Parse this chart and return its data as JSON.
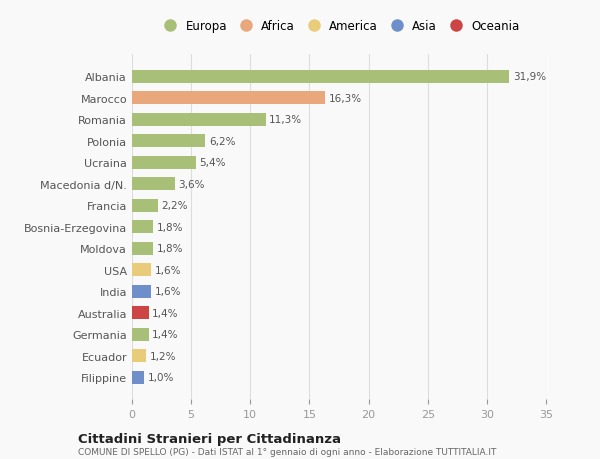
{
  "countries": [
    "Albania",
    "Marocco",
    "Romania",
    "Polonia",
    "Ucraina",
    "Macedonia d/N.",
    "Francia",
    "Bosnia-Erzegovina",
    "Moldova",
    "USA",
    "India",
    "Australia",
    "Germania",
    "Ecuador",
    "Filippine"
  ],
  "values": [
    31.9,
    16.3,
    11.3,
    6.2,
    5.4,
    3.6,
    2.2,
    1.8,
    1.8,
    1.6,
    1.6,
    1.4,
    1.4,
    1.2,
    1.0
  ],
  "labels": [
    "31,9%",
    "16,3%",
    "11,3%",
    "6,2%",
    "5,4%",
    "3,6%",
    "2,2%",
    "1,8%",
    "1,8%",
    "1,6%",
    "1,6%",
    "1,4%",
    "1,4%",
    "1,2%",
    "1,0%"
  ],
  "colors": [
    "#a8bf78",
    "#e8a87c",
    "#a8bf78",
    "#a8bf78",
    "#a8bf78",
    "#a8bf78",
    "#a8bf78",
    "#a8bf78",
    "#a8bf78",
    "#e8cc7a",
    "#6e8fc9",
    "#cc4444",
    "#a8bf78",
    "#e8cc7a",
    "#6e8fc9"
  ],
  "legend_labels": [
    "Europa",
    "Africa",
    "America",
    "Asia",
    "Oceania"
  ],
  "legend_colors": [
    "#a8bf78",
    "#e8a87c",
    "#e8cc7a",
    "#6e8fc9",
    "#cc4444"
  ],
  "title": "Cittadini Stranieri per Cittadinanza",
  "subtitle": "COMUNE DI SPELLO (PG) - Dati ISTAT al 1° gennaio di ogni anno - Elaborazione TUTTITALIA.IT",
  "xlim": [
    0,
    35
  ],
  "xticks": [
    0,
    5,
    10,
    15,
    20,
    25,
    30,
    35
  ],
  "bg_color": "#f9f9f9",
  "plot_bg_color": "#f9f9f9",
  "grid_color": "#dddddd"
}
